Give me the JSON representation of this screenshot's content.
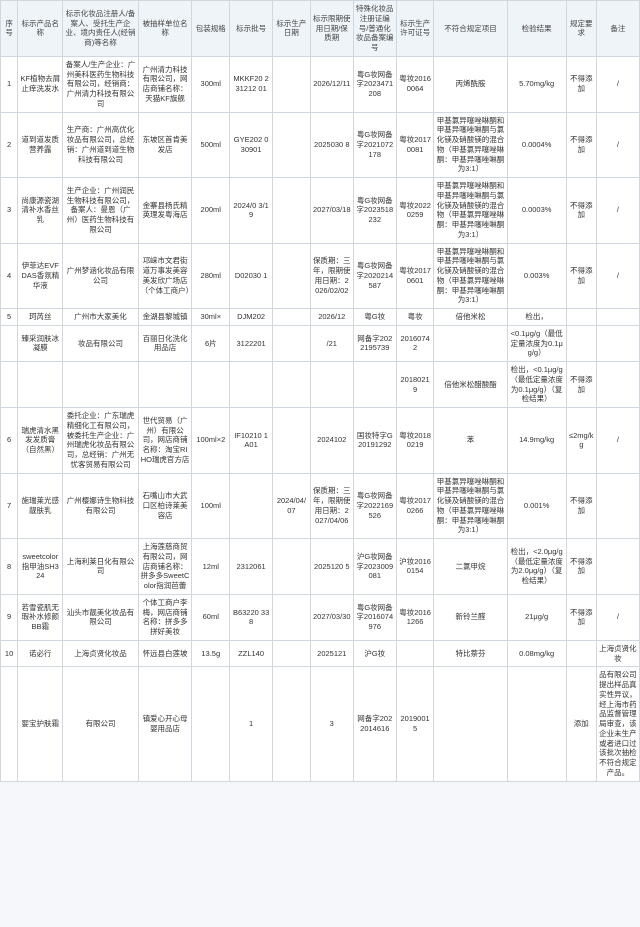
{
  "headers": [
    "序号",
    "标示产品名称",
    "标示化妆品注册人/备案人、受托生产企业、境内责任人(经销商)等名称",
    "被抽样单位名称",
    "包装规格",
    "标示批号",
    "标示生产日期",
    "标示限期使用日期/保质期",
    "特殊化妆品注册证编号/普通化妆品备案编号",
    "标示生产许可证号",
    "不符合规定项目",
    "检验结果",
    "规定要求",
    "备注"
  ],
  "rows": [
    {
      "n": "1",
      "p": "KF植物去屑止痒洗发水",
      "c": "备案人/生产企业：广州美科医药生物科技有限公司，经销商：广州清力科技有限公司",
      "s": "广州清力科技有限公司，网店商铺名称：天猫KF旗舰",
      "sp": "300ml",
      "b": "MKKF20 231212 01",
      "d": "",
      "e": "2026/12/11",
      "r": "粤G妆网备字2023471208",
      "l": "粤妆20160064",
      "np": "丙烯酰胺",
      "res": "5.70mg/kg",
      "req": "不得添加",
      "rm": "/"
    },
    {
      "n": "2",
      "p": "道到道发质营养露",
      "c": "生产商：广州高优化妆品有限公司，总经销：广州道到道生物科技有限公司",
      "s": "东坡区首肯美发店",
      "sp": "500ml",
      "b": "GYE202 030901",
      "d": "",
      "e": "2025030 8",
      "r": "粤G妆网备字2021072178",
      "l": "粤妆20170081",
      "np": "甲基氯异噻唑啉酮和甲基异噻唑啉酮与氯化镁及硝酸镁的混合物（甲基氯异噻唑啉酮：甲基异噻唑啉酮为3:1）",
      "res": "0.0004%",
      "req": "不得添加",
      "rm": "/"
    },
    {
      "n": "3",
      "p": "尚康源瓷湖清补水香丝乳",
      "c": "生产企业：广州润民生物科技有限公司，备案人：曼恩（广州）医药生物科技有限公司",
      "s": "金寨县杨氏精英理发粤海店",
      "sp": "200ml",
      "b": "2024/0 3/19",
      "d": "",
      "e": "2027/03/18",
      "r": "粤G妆网备字2023518232",
      "l": "粤妆20220259",
      "np": "甲基氯异噻唑啉酮和甲基异噻唑啉酮与氯化镁及硝酸镁的混合物（甲基氯异噻唑啉酮：甲基异噻唑啉酮为3:1）",
      "res": "0.0003%",
      "req": "不得添加",
      "rm": "/"
    },
    {
      "n": "4",
      "p": "伊菲达EVFDAS香氛精华液",
      "c": "广州梦涵化妆品有限公司",
      "s": "邛崃市文君街道万事发美容美发欣广场店（个体工商户）",
      "sp": "280ml",
      "b": "D02030 1",
      "d": "",
      "e": "保质期：三年，限期使用日期：2026/02/02",
      "r": "粤G妆网备字2020214587",
      "l": "粤妆20170601",
      "np": "甲基氯异噻唑啉酮和甲基异噻唑啉酮与氯化镁及硝酸镁的混合物（甲基氯异噻唑啉酮：甲基异噻唑啉酮为3:1）",
      "res": "0.003%",
      "req": "不得添加",
      "rm": "/"
    },
    {
      "n": "5",
      "p": "珂芮丝",
      "c": "广州市大家美化",
      "s": "金湖县黎城镇",
      "sp": "30ml×",
      "b": "DJM202",
      "d": "",
      "e": "2026/12",
      "r": "粤G妆",
      "l": "粤妆",
      "np": "倍他米松",
      "res": "检出，",
      "req": "",
      "rm": ""
    },
    {
      "n": "",
      "p": "臻采润肤冰凝膜",
      "c": "妆品有限公司",
      "s": "百丽日化洗化用品店",
      "sp": "6片",
      "b": "3122201",
      "d": "",
      "e": "/21",
      "r": "网备字2022195739",
      "l": "20160742",
      "np": "",
      "res": "<0.1μg/g（最低定量浓度为0.1μg/g）",
      "req": "",
      "rm": ""
    },
    {
      "merge": true,
      "n": "",
      "p": "",
      "c": "",
      "s": "",
      "sp": "",
      "b": "",
      "d": "",
      "e": "",
      "r": "",
      "l": "20180219",
      "np": "倍他米松醋酸酯",
      "res": "检出，<0.1μg/g（最低定量浓度为0.1μg/g）（复检结果）",
      "req": "不得添加",
      "rm": ""
    },
    {
      "n": "6",
      "p": "瑞虎清水黑发发质膏（自然黑）",
      "c": "委托企业：广东瑞虎精细化工有限公司，被委托生产企业：广州瑞虎化妆品有限公司，总经销：广州无忧客贸易有限公司",
      "s": "世代贸易（广州）有限公司，网店商铺名称：淘宝RIHO瑞虎官方店",
      "sp": "100ml×2",
      "b": "IF10210 1A01",
      "d": "",
      "e": "2024102",
      "r": "国妆特字G20191292",
      "l": "粤妆20180219",
      "np": "苯",
      "res": "14.9mg/kg",
      "req": "≤2mg/kg",
      "rm": "/"
    },
    {
      "n": "7",
      "p": "施瑞莱光感靓肤乳",
      "c": "广州樱娜诗生物科技有限公司",
      "s": "石嘴山市大武口区柏诗莱美容店",
      "sp": "100ml",
      "b": "",
      "d": "2024/04/07",
      "e": "保质期：三年，限期使用日期：2027/04/06",
      "r": "粤G妆网备字2022169526",
      "l": "粤妆20170266",
      "np": "甲基氯异噻唑啉酮和甲基异噻唑啉酮与氯化镁及硝酸镁的混合物（甲基氯异噻唑啉酮：甲基异噻唑啉酮为3:1）",
      "res": "0.001%",
      "req": "不得添加",
      "rm": ""
    },
    {
      "n": "8",
      "p": "sweetcolor指甲油SH324",
      "c": "上海利莱日化有限公司",
      "s": "上海莲慈商贸有限公司，网店商铺名称：拼多多SweetColor指润芭蕾",
      "sp": "12ml",
      "b": "2312061",
      "d": "",
      "e": "2025120 5",
      "r": "沪G妆网备字2023009081",
      "l": "沪妆20160154",
      "np": "二氯甲烷",
      "res": "检出，<2.0μg/g（最低定量浓度为2.0μg/g）（复检结果）",
      "req": "不得添加",
      "rm": ""
    },
    {
      "n": "9",
      "p": "若雪瓷肌无瑕补水修颜BB霜",
      "c": "汕头市靓美化妆品有限公司",
      "s": "个体工商户李梅，网店商铺名称：拼多多拼好美妆",
      "sp": "60ml",
      "b": "B63220 338",
      "d": "",
      "e": "2027/03/30",
      "r": "粤G妆网备字2016074976",
      "l": "粤妆20161266",
      "np": "新铃兰醛",
      "res": "21μg/g",
      "req": "不得添加",
      "rm": "/"
    },
    {
      "n": "10",
      "p": "诺必行",
      "c": "上海贞贤化妆品",
      "s": "怀远县白莲坡",
      "sp": "13.5g",
      "b": "ZZL140",
      "d": "",
      "e": "2025121",
      "r": "沪G妆",
      "l": "",
      "np": "特比萘芬",
      "res": "0.08mg/kg",
      "req": "",
      "rm": "上海贞贤化妆"
    },
    {
      "n": "",
      "p": "婴宝护肤霜",
      "c": "有限公司",
      "s": "镇爱心开心母婴用品店",
      "sp": "",
      "b": "1",
      "d": "",
      "e": "3",
      "r": "网备字2022014616",
      "l": "20190015",
      "np": "",
      "res": "",
      "req": "添加",
      "rm": "品有限公司提出样品真实性异议，经上海市药品监督管理局审查，该企业未生产或者进口过该批次抽检不符合规定产品。"
    }
  ],
  "styles": {
    "hbg": "#eff4f8",
    "border": "#d0d7de",
    "bg": "#f5f7fa"
  }
}
